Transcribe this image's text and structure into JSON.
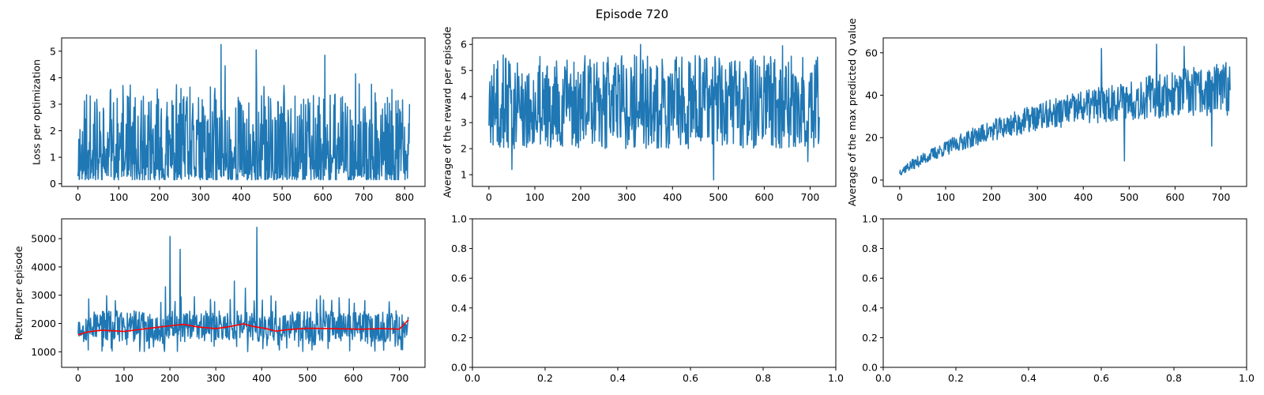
{
  "figure": {
    "suptitle": "Episode 720"
  },
  "chart_data": [
    {
      "id": "loss",
      "type": "line",
      "title": "",
      "xlabel": "",
      "ylabel": "Loss per optimization",
      "xlim": [
        -40,
        850
      ],
      "ylim": [
        -0.1,
        5.5
      ],
      "xticks": [
        0,
        100,
        200,
        300,
        400,
        500,
        600,
        700,
        800
      ],
      "yticks": [
        0,
        1,
        2,
        3,
        4,
        5
      ],
      "grid": false,
      "series": [
        {
          "color": "#1f77b4",
          "x_start": 0,
          "x_end": 812,
          "samples": 812,
          "seed": 11,
          "profile": "loss",
          "spikes": [
            [
              350,
              5.25
            ],
            [
              437,
              5.05
            ],
            [
              605,
              4.85
            ],
            [
              680,
              4.15
            ],
            [
              360,
              4.45
            ],
            [
              335,
              3.6
            ]
          ]
        }
      ]
    },
    {
      "id": "avg_reward",
      "type": "line",
      "title": "",
      "xlabel": "",
      "ylabel": "Average of the reward per episode",
      "xlim": [
        -36,
        756
      ],
      "ylim": [
        0.55,
        6.25
      ],
      "xticks": [
        0,
        100,
        200,
        300,
        400,
        500,
        600,
        700
      ],
      "yticks": [
        1,
        2,
        3,
        4,
        5,
        6
      ],
      "grid": false,
      "series": [
        {
          "color": "#1f77b4",
          "x_start": 0,
          "x_end": 720,
          "samples": 720,
          "seed": 23,
          "profile": "reward",
          "spikes": [
            [
              490,
              0.8
            ],
            [
              50,
              1.2
            ],
            [
              695,
              1.5
            ],
            [
              330,
              6.0
            ],
            [
              640,
              5.95
            ]
          ]
        }
      ]
    },
    {
      "id": "max_q",
      "type": "line",
      "title": "",
      "xlabel": "",
      "ylabel": "Average of the max predicted Q value",
      "xlim": [
        -36,
        756
      ],
      "ylim": [
        -3,
        67
      ],
      "xticks": [
        0,
        100,
        200,
        300,
        400,
        500,
        600,
        700
      ],
      "yticks": [
        0,
        20,
        40,
        60
      ],
      "grid": false,
      "series": [
        {
          "color": "#1f77b4",
          "x_start": 0,
          "x_end": 720,
          "samples": 720,
          "seed": 37,
          "profile": "qvalue",
          "spikes": [
            [
              490,
              9
            ],
            [
              680,
              16
            ],
            [
              560,
              64
            ],
            [
              620,
              63
            ],
            [
              440,
              62
            ]
          ]
        }
      ]
    },
    {
      "id": "return",
      "type": "line",
      "title": "",
      "xlabel": "",
      "ylabel": "Return per episode",
      "xlim": [
        -36,
        756
      ],
      "ylim": [
        450,
        5700
      ],
      "xticks": [
        0,
        100,
        200,
        300,
        400,
        500,
        600,
        700
      ],
      "yticks": [
        1000,
        2000,
        3000,
        4000,
        5000
      ],
      "grid": false,
      "series": [
        {
          "color": "#1f77b4",
          "x_start": 0,
          "x_end": 720,
          "samples": 720,
          "seed": 53,
          "profile": "return",
          "spikes": [
            [
              390,
              5400
            ],
            [
              200,
              5080
            ],
            [
              222,
              4620
            ],
            [
              190,
              3300
            ],
            [
              340,
              3500
            ],
            [
              365,
              3250
            ]
          ]
        },
        {
          "color": "#ff0000",
          "points": [
            [
              0,
              1600
            ],
            [
              20,
              1700
            ],
            [
              50,
              1760
            ],
            [
              80,
              1740
            ],
            [
              100,
              1720
            ],
            [
              130,
              1780
            ],
            [
              160,
              1840
            ],
            [
              200,
              1920
            ],
            [
              230,
              1970
            ],
            [
              260,
              1880
            ],
            [
              300,
              1820
            ],
            [
              330,
              1890
            ],
            [
              360,
              1990
            ],
            [
              380,
              1900
            ],
            [
              410,
              1820
            ],
            [
              430,
              1730
            ],
            [
              460,
              1790
            ],
            [
              500,
              1830
            ],
            [
              540,
              1820
            ],
            [
              580,
              1810
            ],
            [
              620,
              1800
            ],
            [
              660,
              1820
            ],
            [
              700,
              1800
            ],
            [
              720,
              2130
            ]
          ]
        }
      ]
    },
    {
      "id": "empty_1",
      "type": "line",
      "title": "",
      "xlabel": "",
      "ylabel": "",
      "xlim": [
        0,
        1
      ],
      "ylim": [
        0,
        1
      ],
      "xticks": [
        0.0,
        0.2,
        0.4,
        0.6,
        0.8,
        1.0
      ],
      "yticks": [
        0.0,
        0.2,
        0.4,
        0.6,
        0.8,
        1.0
      ],
      "tick_format": "fixed1",
      "grid": false,
      "series": []
    },
    {
      "id": "empty_2",
      "type": "line",
      "title": "",
      "xlabel": "",
      "ylabel": "",
      "xlim": [
        0,
        1
      ],
      "ylim": [
        0,
        1
      ],
      "xticks": [
        0.0,
        0.2,
        0.4,
        0.6,
        0.8,
        1.0
      ],
      "yticks": [
        0.0,
        0.2,
        0.4,
        0.6,
        0.8,
        1.0
      ],
      "tick_format": "fixed1",
      "grid": false,
      "series": []
    }
  ]
}
